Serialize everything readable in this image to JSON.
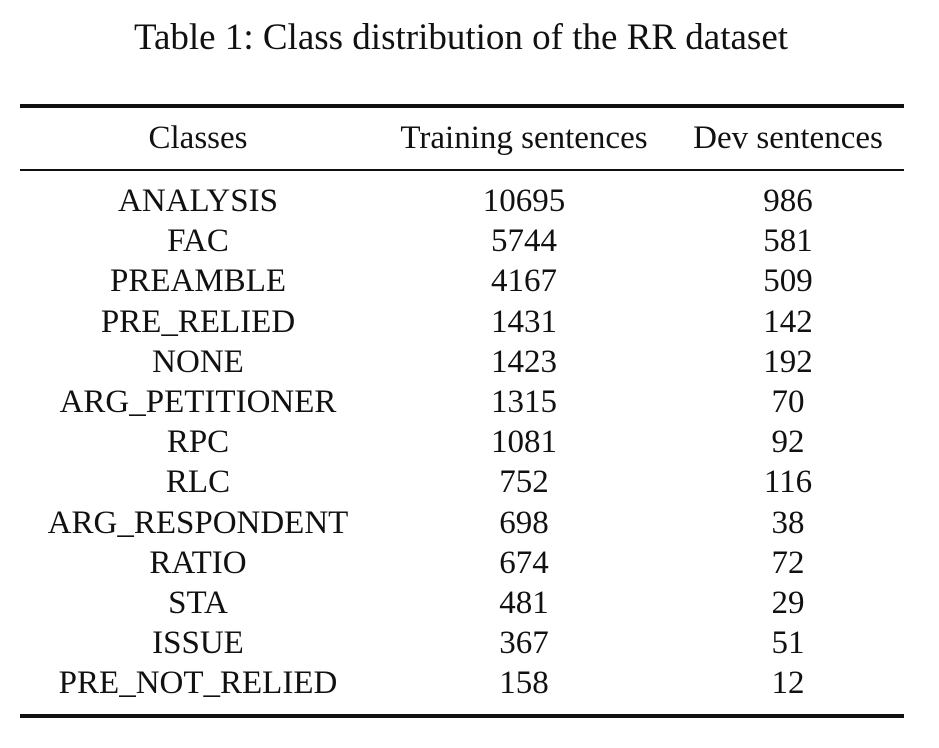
{
  "caption": "Table 1: Class distribution of the RR dataset",
  "table": {
    "headers": [
      "Classes",
      "Training sentences",
      "Dev sentences"
    ],
    "rows": [
      [
        "ANALYSIS",
        "10695",
        "986"
      ],
      [
        "FAC",
        "5744",
        "581"
      ],
      [
        "PREAMBLE",
        "4167",
        "509"
      ],
      [
        "PRE_RELIED",
        "1431",
        "142"
      ],
      [
        "NONE",
        "1423",
        "192"
      ],
      [
        "ARG_PETITIONER",
        "1315",
        "70"
      ],
      [
        "RPC",
        "1081",
        "92"
      ],
      [
        "RLC",
        "752",
        "116"
      ],
      [
        "ARG_RESPONDENT",
        "698",
        "38"
      ],
      [
        "RATIO",
        "674",
        "72"
      ],
      [
        "STA",
        "481",
        "29"
      ],
      [
        "ISSUE",
        "367",
        "51"
      ],
      [
        "PRE_NOT_RELIED",
        "158",
        "12"
      ]
    ]
  }
}
